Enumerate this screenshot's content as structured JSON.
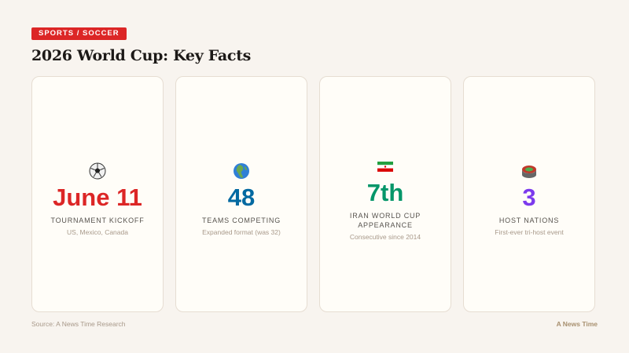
{
  "category_tag": "SPORTS / SOCCER",
  "title": "2026 World Cup: Key Facts",
  "cards": [
    {
      "icon": "soccer-ball-icon",
      "value": "June 11",
      "label": "TOURNAMENT KICKOFF",
      "sub": "US, Mexico, Canada",
      "color": "#dc2626"
    },
    {
      "icon": "globe-icon",
      "value": "48",
      "label": "TEAMS COMPETING",
      "sub": "Expanded format (was 32)",
      "color": "#0369a1"
    },
    {
      "icon": "iran-flag-icon",
      "value": "7th",
      "label": "IRAN WORLD CUP APPEARANCE",
      "sub": "Consecutive since 2014",
      "color": "#059669"
    },
    {
      "icon": "stadium-icon",
      "value": "3",
      "label": "HOST NATIONS",
      "sub": "First-ever tri-host event",
      "color": "#7c3aed"
    }
  ],
  "source": "Source: A News Time Research",
  "brand": "A News Time"
}
